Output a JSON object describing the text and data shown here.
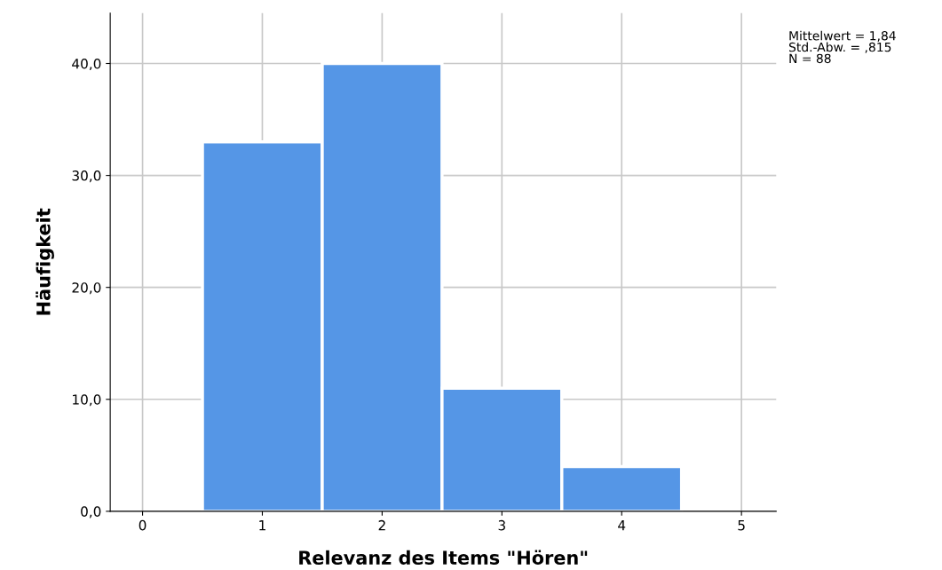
{
  "chart_data": {
    "type": "histogram",
    "xlabel": "Relevanz des Items \"Hören\"",
    "ylabel": "Häufigkeit",
    "bins": [
      0.5,
      1.5,
      2.5,
      3.5,
      4.5
    ],
    "values": [
      33,
      40,
      11,
      4
    ],
    "color": "#5596e6",
    "xlim": [
      -0.27,
      5.29
    ],
    "xticks": [
      0,
      1,
      2,
      3,
      4,
      5
    ],
    "ylim": [
      0,
      44.5
    ],
    "yticks": [
      {
        "value": 0,
        "label": "0,0"
      },
      {
        "value": 10,
        "label": "10,0"
      },
      {
        "value": 20,
        "label": "20,0"
      },
      {
        "value": 30,
        "label": "30,0"
      },
      {
        "value": 40,
        "label": "40,0"
      }
    ],
    "grid": true,
    "annotations": [
      "Mittelwert = 1,84",
      "Std.-Abw. = ,815",
      "N = 88"
    ]
  }
}
